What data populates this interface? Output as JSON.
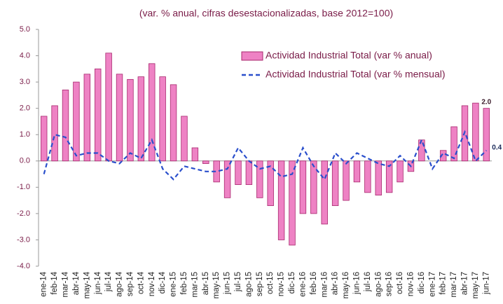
{
  "chart_data": {
    "type": "bar_line",
    "title": "(var. % anual, cifras desestacionalizadas, base 2012=100)",
    "categories": [
      "ene-14",
      "feb-14",
      "mar-14",
      "abr-14",
      "may-14",
      "jun-14",
      "jul-14",
      "ago-14",
      "sep-14",
      "oct-14",
      "nov-14",
      "dic-14",
      "ene-15",
      "feb-15",
      "mar-15",
      "abr-15",
      "may-15",
      "jun-15",
      "jul-15",
      "ago-15",
      "sep-15",
      "oct-15",
      "nov-15",
      "dic-15",
      "ene-16",
      "feb-16",
      "mar-16",
      "abr-16",
      "may-16",
      "jun-16",
      "jul-16",
      "ago-16",
      "sep-16",
      "oct-16",
      "nov-16",
      "dic-16",
      "ene-17",
      "feb-17",
      "mar-17",
      "abr-17",
      "may-17",
      "jun-17"
    ],
    "series": [
      {
        "name": "Actividad Industrial Total (var % anual)",
        "type": "bar",
        "color": "#ee82c4",
        "edge": "#a8286e",
        "values": [
          1.7,
          2.1,
          2.7,
          3.0,
          3.3,
          3.5,
          4.1,
          3.3,
          3.1,
          3.2,
          3.7,
          3.2,
          2.9,
          1.7,
          0.5,
          -0.1,
          -0.8,
          -1.4,
          -0.9,
          -0.9,
          -1.4,
          -1.7,
          -3.0,
          -3.2,
          -2.0,
          -2.0,
          -2.4,
          -1.7,
          -1.5,
          -0.8,
          -1.2,
          -1.3,
          -1.2,
          -0.8,
          -0.4,
          0.8,
          0.0,
          0.4,
          1.3,
          2.1,
          2.2,
          2.0
        ],
        "value_labels": [
          null,
          null,
          null,
          null,
          null,
          null,
          null,
          null,
          null,
          null,
          null,
          null,
          null,
          null,
          null,
          null,
          null,
          null,
          null,
          null,
          null,
          null,
          null,
          null,
          null,
          null,
          null,
          null,
          null,
          null,
          null,
          null,
          null,
          null,
          null,
          null,
          null,
          null,
          null,
          null,
          null,
          "2.0"
        ]
      },
      {
        "name": "Actividad Industrial Total (var % mensual)",
        "type": "line",
        "color": "#2a4fcc",
        "dashed": true,
        "values": [
          -0.5,
          1.0,
          0.9,
          0.2,
          0.3,
          0.3,
          0.0,
          -0.1,
          0.3,
          0.1,
          0.8,
          -0.3,
          -0.7,
          -0.2,
          -0.3,
          -0.4,
          -0.4,
          -0.3,
          0.5,
          0.0,
          -0.3,
          -0.2,
          -0.6,
          -0.5,
          0.5,
          -0.2,
          -0.7,
          0.3,
          -0.1,
          0.3,
          0.1,
          -0.1,
          -0.2,
          0.2,
          -0.2,
          0.8,
          -0.3,
          0.3,
          0.1,
          1.1,
          0.0,
          0.4
        ],
        "value_labels": [
          null,
          null,
          null,
          null,
          null,
          null,
          null,
          null,
          null,
          null,
          null,
          null,
          null,
          null,
          null,
          null,
          null,
          null,
          null,
          null,
          null,
          null,
          null,
          null,
          null,
          null,
          null,
          null,
          null,
          null,
          null,
          null,
          null,
          null,
          null,
          null,
          null,
          null,
          null,
          null,
          null,
          "0.4"
        ]
      }
    ],
    "ylim": [
      -4,
      5
    ],
    "yticks": [
      {
        "value": -4,
        "label": "-4.0"
      },
      {
        "value": -3,
        "label": "-3.0"
      },
      {
        "value": -2,
        "label": "-2.0"
      },
      {
        "value": -1,
        "label": "-1.0"
      },
      {
        "value": 0,
        "label": "0.0"
      },
      {
        "value": 1,
        "label": "1.0"
      },
      {
        "value": 2,
        "label": "2.0"
      },
      {
        "value": 3,
        "label": "3.0"
      },
      {
        "value": 4,
        "label": "4.0"
      },
      {
        "value": 5,
        "label": "5.0"
      }
    ],
    "legend": "upper right",
    "text_color": "#7a1c48"
  }
}
